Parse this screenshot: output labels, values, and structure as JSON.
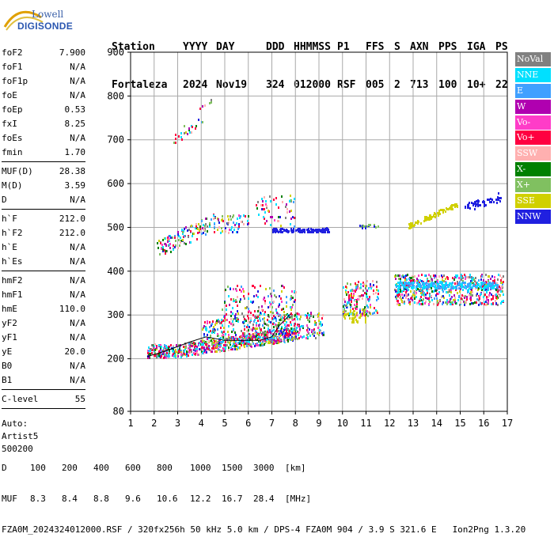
{
  "logo": {
    "line1": "Lowell",
    "line2": "DIGISONDE"
  },
  "header": {
    "labels": [
      "Station",
      "YYYY",
      "DAY",
      "DDD",
      "HHMMSS",
      "P1",
      "FFS",
      "S",
      "AXN",
      "PPS",
      "IGA",
      "PS"
    ],
    "values": [
      "Fortaleza",
      "2024",
      "Nov19",
      "324",
      "012000",
      "RSF",
      "005",
      "2",
      "713",
      "100",
      "10+",
      "22"
    ]
  },
  "params_groups": [
    [
      {
        "name": "foF2",
        "value": "7.900"
      },
      {
        "name": "foF1",
        "value": "N/A"
      },
      {
        "name": "foF1p",
        "value": "N/A"
      },
      {
        "name": "foE",
        "value": "N/A"
      },
      {
        "name": "foEp",
        "value": "0.53"
      },
      {
        "name": "fxI",
        "value": "8.25"
      },
      {
        "name": "foEs",
        "value": "N/A"
      },
      {
        "name": "fmin",
        "value": "1.70"
      }
    ],
    [
      {
        "name": "MUF(D)",
        "value": "28.38"
      },
      {
        "name": "M(D)",
        "value": "3.59"
      },
      {
        "name": "D",
        "value": "N/A"
      }
    ],
    [
      {
        "name": "h`F",
        "value": "212.0"
      },
      {
        "name": "h`F2",
        "value": "212.0"
      },
      {
        "name": "h`E",
        "value": "N/A"
      },
      {
        "name": "h`Es",
        "value": "N/A"
      }
    ],
    [
      {
        "name": "hmF2",
        "value": "N/A"
      },
      {
        "name": "hmF1",
        "value": "N/A"
      },
      {
        "name": "hmE",
        "value": "110.0"
      },
      {
        "name": "yF2",
        "value": "N/A"
      },
      {
        "name": "yF1",
        "value": "N/A"
      },
      {
        "name": "yE",
        "value": "20.0"
      },
      {
        "name": "B0",
        "value": "N/A"
      },
      {
        "name": "B1",
        "value": "N/A"
      }
    ],
    [
      {
        "name": "C-level",
        "value": "55"
      }
    ]
  ],
  "auto": [
    "Auto:",
    "Artist5",
    "500200"
  ],
  "legend": [
    {
      "label": "NoVal",
      "color": "#808080"
    },
    {
      "label": "NNE",
      "color": "#00e0ff"
    },
    {
      "label": "E",
      "color": "#40a0ff"
    },
    {
      "label": "W",
      "color": "#b000b0"
    },
    {
      "label": "Vo-",
      "color": "#ff3cc8"
    },
    {
      "label": "Vo+",
      "color": "#ff0040"
    },
    {
      "label": "SSW",
      "color": "#ffb0b0"
    },
    {
      "label": "X-",
      "color": "#008000"
    },
    {
      "label": "X+",
      "color": "#80c060"
    },
    {
      "label": "SSE",
      "color": "#d0d000"
    },
    {
      "label": "NNW",
      "color": "#2020e0"
    }
  ],
  "chart_data": {
    "type": "scatter",
    "title": "",
    "xlabel": "",
    "ylabel": "",
    "xlim": [
      1,
      17
    ],
    "ylim": [
      80,
      900
    ],
    "x_ticks": [
      1,
      2,
      3,
      4,
      5,
      6,
      7,
      8,
      9,
      10,
      11,
      12,
      13,
      14,
      15,
      16,
      17
    ],
    "y_ticks": [
      80,
      200,
      300,
      400,
      500,
      600,
      700,
      800,
      900
    ],
    "grid": true,
    "series": [
      {
        "color_key": "Vo+",
        "points": [
          [
            1.7,
            215
          ],
          [
            2.0,
            210
          ],
          [
            2.5,
            215
          ],
          [
            3.0,
            220
          ],
          [
            3.5,
            222
          ],
          [
            4.0,
            228
          ],
          [
            4.5,
            232
          ],
          [
            5.0,
            240
          ],
          [
            5.5,
            248
          ],
          [
            6.0,
            258
          ],
          [
            6.5,
            270
          ],
          [
            7.0,
            282
          ],
          [
            7.5,
            295
          ],
          [
            7.8,
            305
          ]
        ]
      },
      {
        "color_key": "NNE",
        "points": [
          [
            12.5,
            370
          ],
          [
            13.0,
            365
          ],
          [
            13.5,
            368
          ],
          [
            14.0,
            372
          ],
          [
            14.5,
            375
          ],
          [
            15.0,
            370
          ],
          [
            15.5,
            365
          ],
          [
            16.0,
            360
          ],
          [
            16.5,
            350
          ]
        ]
      },
      {
        "color_key": "SSE",
        "points": [
          [
            12.8,
            510
          ],
          [
            13.2,
            515
          ],
          [
            13.6,
            525
          ],
          [
            14.0,
            535
          ],
          [
            14.4,
            545
          ],
          [
            14.8,
            555
          ]
        ]
      },
      {
        "color_key": "NNW",
        "points": [
          [
            7.0,
            492
          ],
          [
            7.5,
            495
          ],
          [
            8.0,
            495
          ],
          [
            8.5,
            495
          ],
          [
            9.0,
            495
          ],
          [
            9.3,
            500
          ],
          [
            15.2,
            550
          ],
          [
            15.6,
            545
          ],
          [
            16.0,
            555
          ],
          [
            16.4,
            560
          ],
          [
            16.6,
            580
          ]
        ]
      }
    ],
    "trace": [
      [
        1.7,
        205
      ],
      [
        2.5,
        218
      ],
      [
        3.5,
        238
      ],
      [
        4.2,
        250
      ],
      [
        5.0,
        242
      ],
      [
        5.8,
        242
      ],
      [
        6.5,
        242
      ],
      [
        7.0,
        250
      ],
      [
        7.3,
        275
      ],
      [
        7.8,
        303
      ]
    ]
  },
  "bottom": {
    "d_label": "D",
    "d_values": [
      "100",
      "200",
      "400",
      "600",
      "800",
      "1000",
      "1500",
      "3000",
      "[km]"
    ],
    "muf_label": "MUF",
    "muf_values": [
      "8.3",
      "8.4",
      "8.8",
      "9.6",
      "10.6",
      "12.2",
      "16.7",
      "28.4",
      "[MHz]"
    ],
    "footer": "FZA0M_2024324012000.RSF / 320fx256h 50 kHz 5.0 km / DPS-4 FZA0M 904 / 3.9 S 321.6 E",
    "version": "Ion2Png 1.3.20"
  }
}
